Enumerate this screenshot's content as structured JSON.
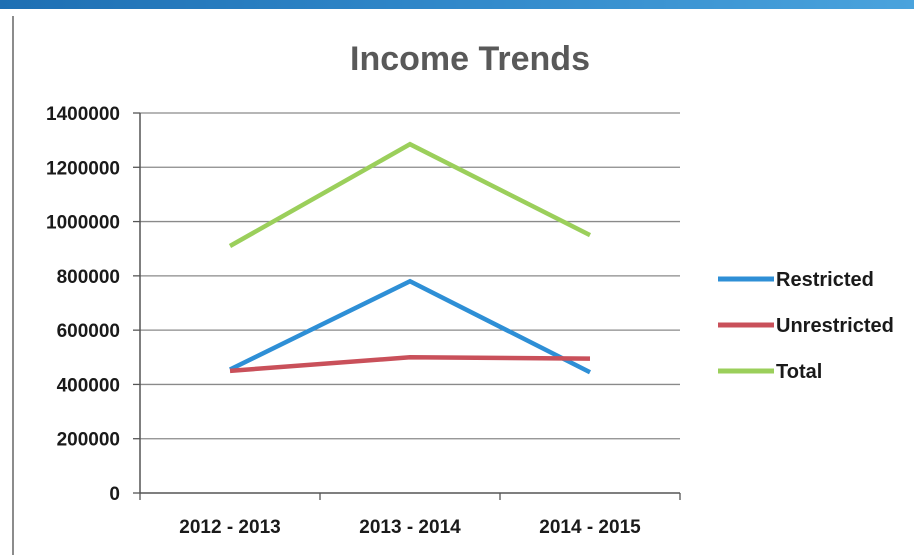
{
  "chart_data": {
    "type": "line",
    "title": "Income Trends",
    "xlabel": "",
    "ylabel": "",
    "categories": [
      "2012 - 2013",
      "2013 - 2014",
      "2014 - 2015"
    ],
    "ylim": [
      0,
      1400000
    ],
    "yticks": [
      "0",
      "200000",
      "400000",
      "600000",
      "800000",
      "1000000",
      "1200000",
      "1400000"
    ],
    "grid": true,
    "legend_position": "right",
    "series": [
      {
        "name": "Restricted",
        "color": "#2e8fd6",
        "values": [
          455000,
          780000,
          445000
        ]
      },
      {
        "name": "Unrestricted",
        "color": "#c9505a",
        "values": [
          450000,
          500000,
          495000
        ]
      },
      {
        "name": "Total",
        "color": "#9bcf5b",
        "values": [
          910000,
          1285000,
          950000
        ]
      }
    ]
  }
}
